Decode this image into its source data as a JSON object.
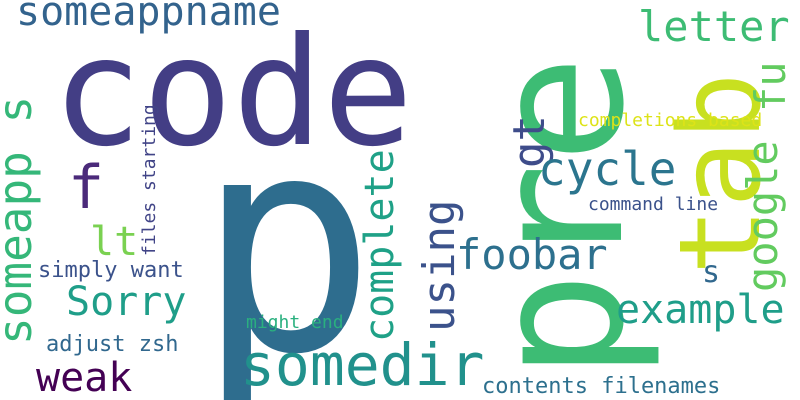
{
  "words": [
    {
      "text": "code",
      "color": "#433e85"
    },
    {
      "text": "p",
      "color": "#2e6d8e"
    },
    {
      "text": "pre",
      "color": "#3dbc74"
    },
    {
      "text": "tab",
      "color": "#c8e020"
    },
    {
      "text": "someappname",
      "color": "#33638d"
    },
    {
      "text": "someapp s",
      "color": "#35b779"
    },
    {
      "text": "letter",
      "color": "#3dbc74"
    },
    {
      "text": "fu",
      "color": "#62cb5f"
    },
    {
      "text": "f",
      "color": "#4b2a7a"
    },
    {
      "text": "gt",
      "color": "#3e4c8a"
    },
    {
      "text": "cycle",
      "color": "#2b758e"
    },
    {
      "text": "completions based",
      "color": "#dde318"
    },
    {
      "text": "google",
      "color": "#62cb5f"
    },
    {
      "text": "command line",
      "color": "#3b528b"
    },
    {
      "text": "files starting",
      "color": "#414487"
    },
    {
      "text": "complete",
      "color": "#1fa187"
    },
    {
      "text": "using",
      "color": "#3b528b"
    },
    {
      "text": "lt",
      "color": "#7ad151"
    },
    {
      "text": "foobar",
      "color": "#2d708e"
    },
    {
      "text": "s",
      "color": "#31688e"
    },
    {
      "text": "simply want",
      "color": "#3b528b"
    },
    {
      "text": "Sorry",
      "color": "#1f9e89"
    },
    {
      "text": "example",
      "color": "#1f9e89"
    },
    {
      "text": "might end",
      "color": "#2ab07f"
    },
    {
      "text": "adjust zsh",
      "color": "#31688e"
    },
    {
      "text": "somedir",
      "color": "#21918c"
    },
    {
      "text": "weak",
      "color": "#440154"
    },
    {
      "text": "contents filenames",
      "color": "#2d708e"
    }
  ]
}
